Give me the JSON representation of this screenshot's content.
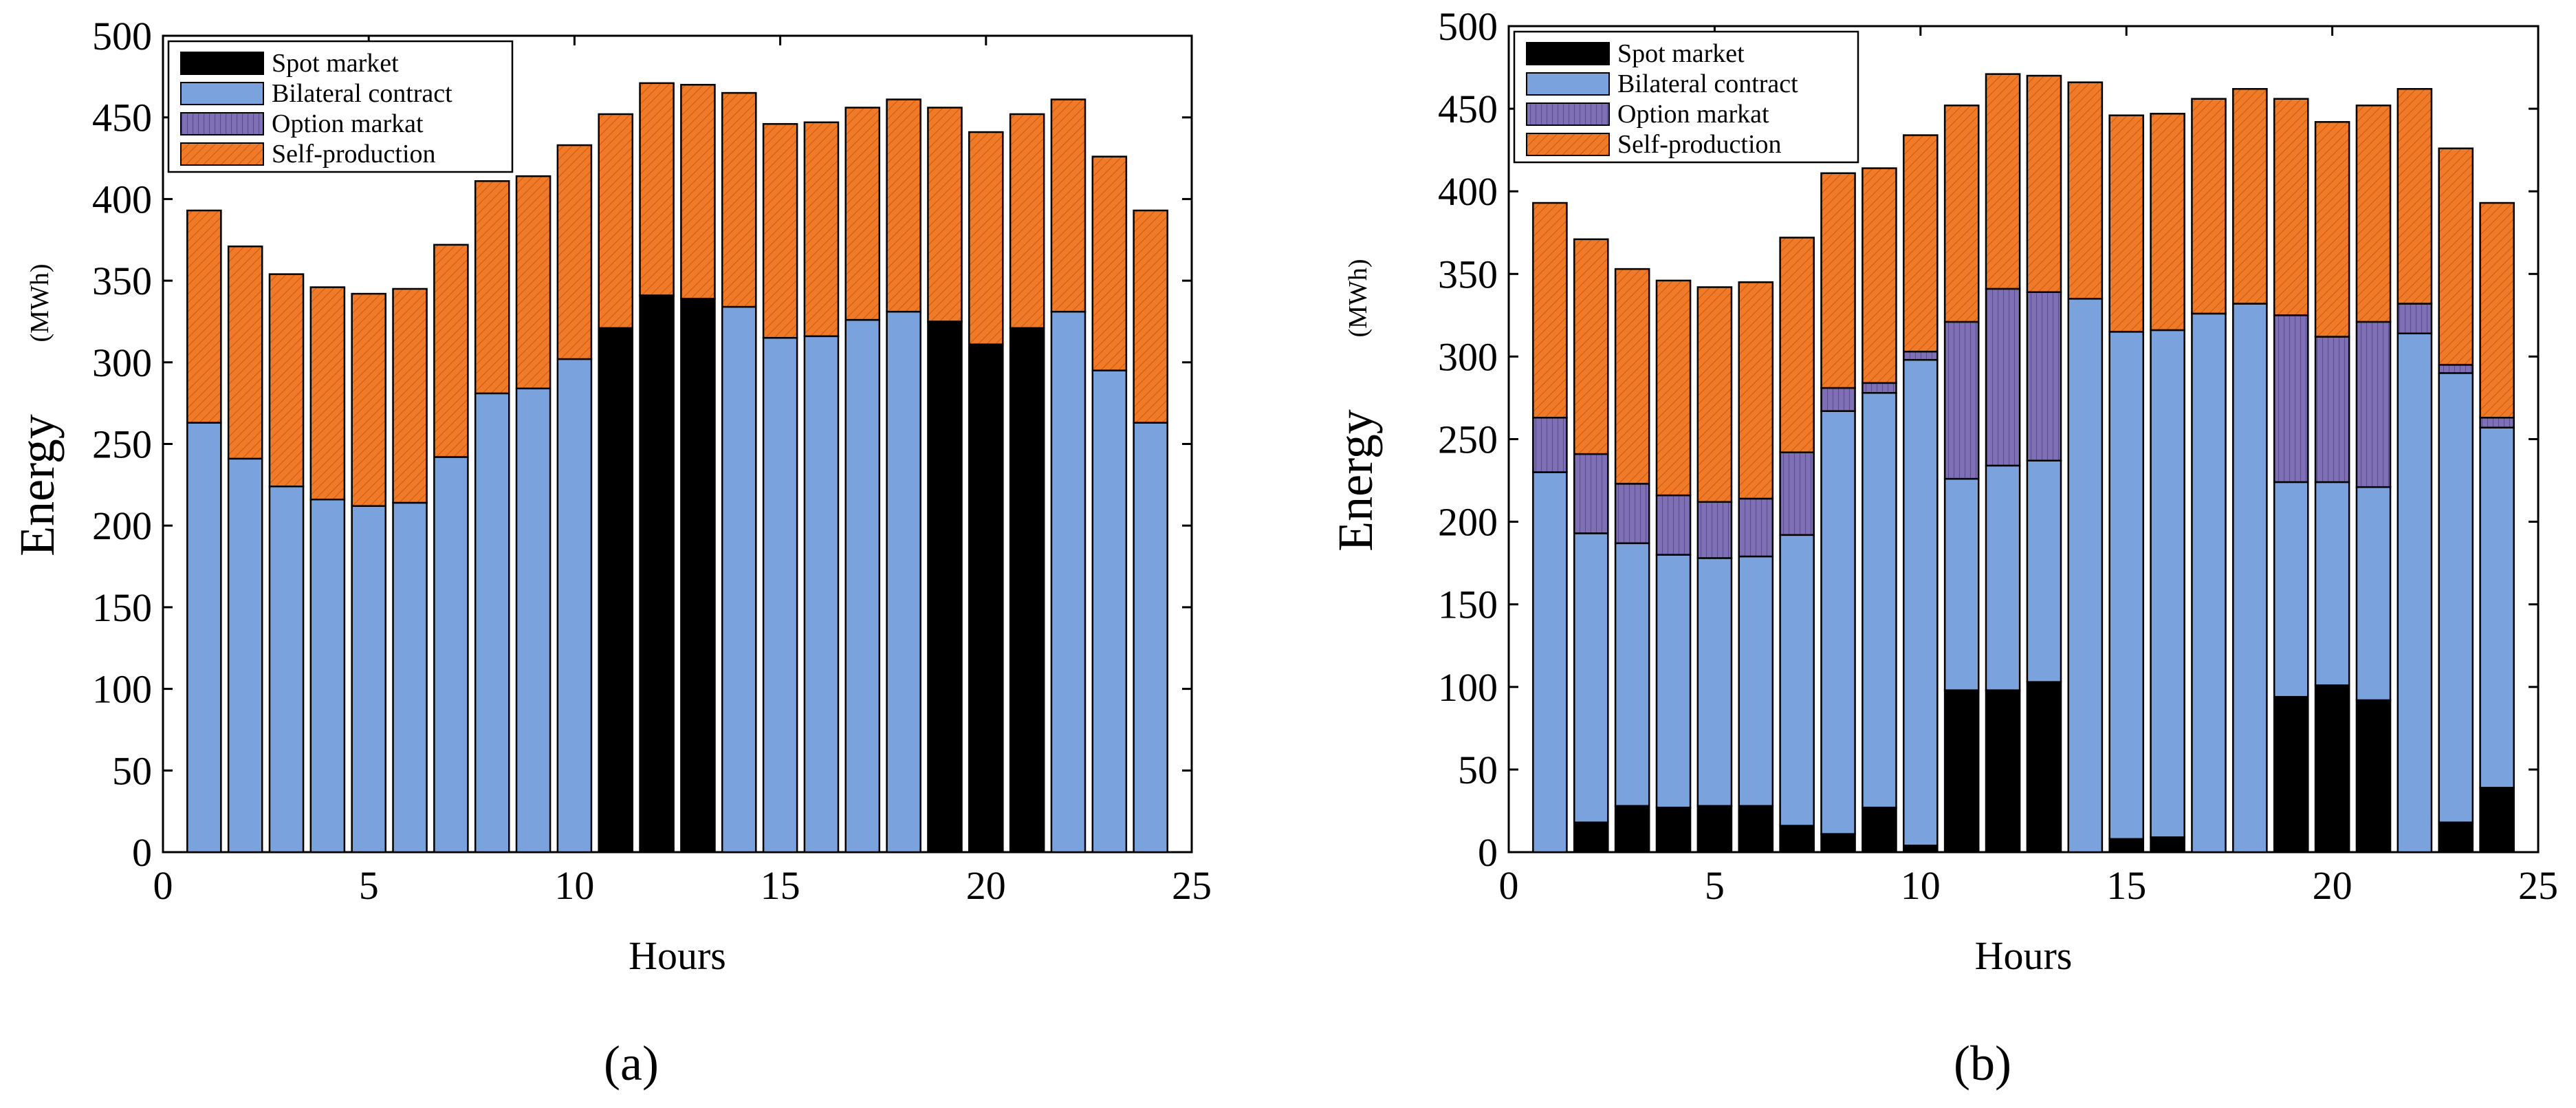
{
  "colors": {
    "spot": "#000000",
    "bilateral": "#7aa3dd",
    "option": "#7f6fb4",
    "self": "#f07a28",
    "self_hatch": "#c85b12",
    "option_hatch": "#5a4a8c"
  },
  "legend_labels": [
    "Spot market",
    "Bilateral contract",
    "Option markat",
    "Self-production"
  ],
  "chart_data": [
    {
      "type": "bar",
      "stacked": true,
      "caption": "(a)",
      "xlabel": "Hours",
      "ylabel": "Energy",
      "ylabel_unit": "(MWh)",
      "xlim": [
        0,
        25
      ],
      "ylim": [
        0,
        500
      ],
      "xticks": [
        0,
        5,
        10,
        15,
        20,
        25
      ],
      "yticks": [
        0,
        50,
        100,
        150,
        200,
        250,
        300,
        350,
        400,
        450,
        500
      ],
      "legend_position": "top-left",
      "categories": [
        1,
        2,
        3,
        4,
        5,
        6,
        7,
        8,
        9,
        10,
        11,
        12,
        13,
        14,
        15,
        16,
        17,
        18,
        19,
        20,
        21,
        22,
        23,
        24
      ],
      "series": [
        {
          "name": "Spot market",
          "key": "spot",
          "values": [
            0,
            0,
            0,
            0,
            0,
            0,
            0,
            0,
            0,
            0,
            321,
            341,
            339,
            0,
            0,
            0,
            0,
            0,
            325,
            311,
            321,
            0,
            0,
            0
          ]
        },
        {
          "name": "Bilateral contract",
          "key": "bilateral",
          "values": [
            263,
            241,
            224,
            216,
            212,
            214,
            242,
            281,
            284,
            302,
            0,
            0,
            0,
            334,
            315,
            316,
            326,
            331,
            0,
            0,
            0,
            331,
            295,
            263
          ]
        },
        {
          "name": "Option markat",
          "key": "option",
          "values": [
            0,
            0,
            0,
            0,
            0,
            0,
            0,
            0,
            0,
            0,
            0,
            0,
            0,
            0,
            0,
            0,
            0,
            0,
            0,
            0,
            0,
            0,
            0,
            0
          ]
        },
        {
          "name": "Self-production",
          "key": "self",
          "values": [
            130,
            130,
            130,
            130,
            130,
            131,
            130,
            130,
            130,
            131,
            131,
            130,
            131,
            131,
            131,
            131,
            130,
            130,
            131,
            130,
            131,
            130,
            131,
            130
          ]
        }
      ]
    },
    {
      "type": "bar",
      "stacked": true,
      "caption": "(b)",
      "xlabel": "Hours",
      "ylabel": "Energy",
      "ylabel_unit": "(MWh)",
      "xlim": [
        0,
        25
      ],
      "ylim": [
        0,
        500
      ],
      "xticks": [
        0,
        5,
        10,
        15,
        20,
        25
      ],
      "yticks": [
        0,
        50,
        100,
        150,
        200,
        250,
        300,
        350,
        400,
        450,
        500
      ],
      "legend_position": "top-left",
      "categories": [
        1,
        2,
        3,
        4,
        5,
        6,
        7,
        8,
        9,
        10,
        11,
        12,
        13,
        14,
        15,
        16,
        17,
        18,
        19,
        20,
        21,
        22,
        23,
        24
      ],
      "series": [
        {
          "name": "Spot market",
          "key": "spot",
          "values": [
            0,
            18,
            28,
            27,
            28,
            28,
            16,
            11,
            27,
            4,
            98,
            98,
            103,
            0,
            8,
            9,
            0,
            0,
            94,
            101,
            92,
            0,
            18,
            39
          ]
        },
        {
          "name": "Bilateral contract",
          "key": "bilateral",
          "values": [
            230,
            175,
            159,
            153,
            150,
            151,
            176,
            256,
            251,
            294,
            128,
            136,
            134,
            335,
            307,
            307,
            326,
            332,
            130,
            123,
            129,
            314,
            272,
            218
          ]
        },
        {
          "name": "Option markat",
          "key": "option",
          "values": [
            33,
            48,
            36,
            36,
            34,
            35,
            50,
            14,
            6,
            5,
            95,
            107,
            102,
            0,
            0,
            0,
            0,
            0,
            101,
            88,
            100,
            18,
            5,
            6
          ]
        },
        {
          "name": "Self-production",
          "key": "self",
          "values": [
            130,
            130,
            130,
            130,
            130,
            131,
            130,
            130,
            130,
            131,
            131,
            130,
            131,
            131,
            131,
            131,
            130,
            130,
            131,
            130,
            131,
            130,
            131,
            130
          ]
        }
      ]
    }
  ]
}
